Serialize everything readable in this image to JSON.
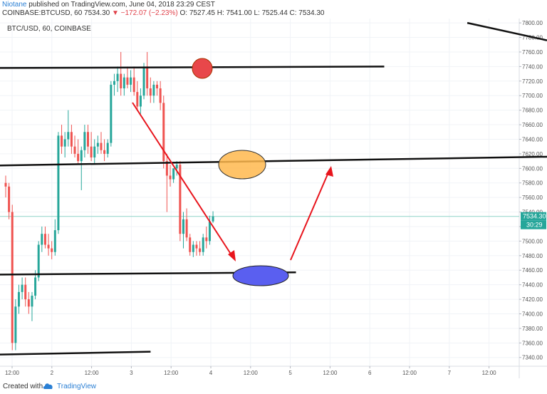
{
  "header": {
    "author": "Niotane",
    "published": "published on TradingView.com, June 04, 2018 23:29 CEST",
    "symbol": "COINBASE:BTCUSD, 60",
    "last": "7534.30",
    "change": "▼ −172.07 (−2.23%)",
    "open": "O: 7527.45",
    "high": "H: 7541.00",
    "low": "L: 7525.44",
    "close": "C: 7534.30"
  },
  "legend": "BTC/USD, 60, COINBASE",
  "footer": {
    "created": "Created with",
    "brand": "TradingView"
  },
  "price_tag": "7534.30",
  "countdown_tag": "30:29",
  "colors": {
    "up": "#26a69a",
    "down": "#ef5350",
    "arrow": "#e8141c",
    "circle_red": "#e8474a",
    "ellipse_orange": "#ffb84d",
    "ellipse_blue": "#5a5ff0",
    "accent": "#2a7fd4"
  },
  "chart_data": {
    "type": "candlestick",
    "title": "BTC/USD, 60, COINBASE",
    "y_ticks": [
      7340,
      7360,
      7380,
      7400,
      7420,
      7440,
      7460,
      7480,
      7500,
      7520,
      7540,
      7560,
      7580,
      7600,
      7620,
      7640,
      7660,
      7680,
      7700,
      7720,
      7740,
      7760,
      7780,
      7800
    ],
    "x_ticks": [
      "12:00",
      "2",
      "12:00",
      "3",
      "12:00",
      "4",
      "12:00",
      "5",
      "12:00",
      "6",
      "12:00",
      "7",
      "12:00"
    ],
    "ylim": [
      7328,
      7806
    ],
    "candles_ohlc": [
      [
        7580,
        7590,
        7560,
        7575
      ],
      [
        7575,
        7580,
        7530,
        7540
      ],
      [
        7540,
        7550,
        7350,
        7360
      ],
      [
        7360,
        7420,
        7350,
        7410
      ],
      [
        7410,
        7440,
        7400,
        7430
      ],
      [
        7430,
        7450,
        7420,
        7440
      ],
      [
        7440,
        7450,
        7410,
        7420
      ],
      [
        7420,
        7430,
        7400,
        7410
      ],
      [
        7410,
        7430,
        7390,
        7425
      ],
      [
        7425,
        7460,
        7420,
        7450
      ],
      [
        7450,
        7500,
        7445,
        7495
      ],
      [
        7495,
        7520,
        7485,
        7510
      ],
      [
        7510,
        7520,
        7490,
        7495
      ],
      [
        7495,
        7510,
        7480,
        7490
      ],
      [
        7490,
        7500,
        7475,
        7485
      ],
      [
        7485,
        7530,
        7480,
        7515
      ],
      [
        7515,
        7650,
        7510,
        7645
      ],
      [
        7645,
        7660,
        7620,
        7630
      ],
      [
        7630,
        7650,
        7615,
        7640
      ],
      [
        7640,
        7680,
        7630,
        7650
      ],
      [
        7650,
        7660,
        7620,
        7630
      ],
      [
        7630,
        7645,
        7615,
        7620
      ],
      [
        7620,
        7640,
        7605,
        7610
      ],
      [
        7610,
        7630,
        7570,
        7625
      ],
      [
        7625,
        7660,
        7615,
        7650
      ],
      [
        7650,
        7660,
        7620,
        7630
      ],
      [
        7630,
        7650,
        7610,
        7615
      ],
      [
        7615,
        7640,
        7605,
        7630
      ],
      [
        7630,
        7645,
        7620,
        7635
      ],
      [
        7635,
        7650,
        7620,
        7625
      ],
      [
        7625,
        7640,
        7610,
        7620
      ],
      [
        7620,
        7640,
        7615,
        7635
      ],
      [
        7635,
        7720,
        7630,
        7715
      ],
      [
        7715,
        7730,
        7700,
        7720
      ],
      [
        7720,
        7740,
        7705,
        7730
      ],
      [
        7730,
        7760,
        7700,
        7710
      ],
      [
        7710,
        7730,
        7700,
        7725
      ],
      [
        7725,
        7740,
        7710,
        7715
      ],
      [
        7715,
        7735,
        7705,
        7725
      ],
      [
        7725,
        7740,
        7700,
        7705
      ],
      [
        7705,
        7720,
        7680,
        7685
      ],
      [
        7685,
        7710,
        7675,
        7700
      ],
      [
        7700,
        7745,
        7695,
        7740
      ],
      [
        7740,
        7760,
        7700,
        7710
      ],
      [
        7710,
        7725,
        7690,
        7700
      ],
      [
        7700,
        7720,
        7690,
        7715
      ],
      [
        7715,
        7720,
        7700,
        7710
      ],
      [
        7710,
        7720,
        7680,
        7690
      ],
      [
        7690,
        7700,
        7600,
        7610
      ],
      [
        7610,
        7620,
        7540,
        7590
      ],
      [
        7590,
        7605,
        7575,
        7585
      ],
      [
        7585,
        7600,
        7580,
        7600
      ],
      [
        7600,
        7610,
        7590,
        7605
      ],
      [
        7605,
        7610,
        7500,
        7510
      ],
      [
        7510,
        7540,
        7490,
        7530
      ],
      [
        7530,
        7545,
        7500,
        7505
      ],
      [
        7505,
        7510,
        7480,
        7485
      ],
      [
        7485,
        7500,
        7478,
        7495
      ],
      [
        7495,
        7500,
        7480,
        7490
      ],
      [
        7490,
        7500,
        7480,
        7485
      ],
      [
        7485,
        7510,
        7480,
        7505
      ],
      [
        7505,
        7520,
        7490,
        7500
      ],
      [
        7500,
        7535,
        7495,
        7527
      ],
      [
        7527,
        7541,
        7525,
        7534
      ]
    ],
    "horizontal_lines": [
      {
        "x_start": 0,
        "x_end": 0.74,
        "y_start": 7738,
        "y_end": 7740
      },
      {
        "x_start": 0,
        "x_end": 1.0,
        "y_start": 7604,
        "y_end": 7616
      },
      {
        "x_start": 0,
        "x_end": 0.57,
        "y_start": 7454,
        "y_end": 7457
      },
      {
        "x_start": 0,
        "x_end": 0.29,
        "y_start": 7344,
        "y_end": 7348
      },
      {
        "x_start": 0.9,
        "x_end": 1.0,
        "y_start": 7800,
        "y_end": 7776
      }
    ]
  }
}
